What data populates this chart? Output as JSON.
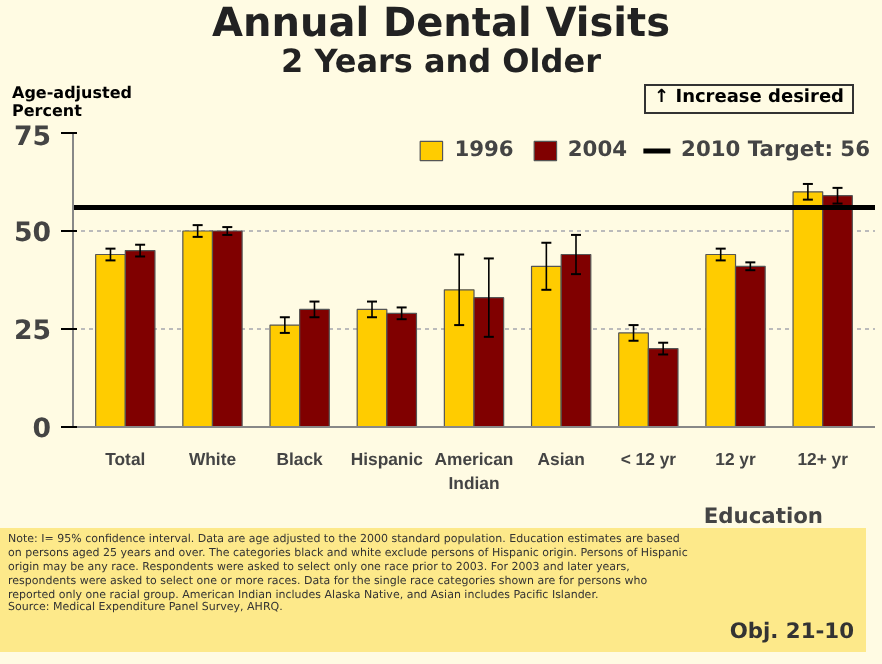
{
  "chart_data": {
    "type": "bar",
    "title": "Annual Dental Visits",
    "subtitle": "2 Years and Older",
    "ylabel": "Age-adjusted Percent",
    "categories": [
      "Total",
      "White",
      "Black",
      "Hispanic",
      "American Indian",
      "Asian",
      "< 12 yr",
      "12 yr",
      "12+ yr"
    ],
    "series": [
      {
        "name": "1996",
        "color": "#ffcc00",
        "values": [
          44,
          50,
          26,
          30,
          35,
          41,
          24,
          44,
          60
        ],
        "errors": [
          1.5,
          1.5,
          2,
          2,
          [
            26,
            44
          ],
          [
            35,
            47
          ],
          2,
          1.5,
          2
        ]
      },
      {
        "name": "2004",
        "color": "#800000",
        "values": [
          45,
          50,
          30,
          29,
          33,
          44,
          20,
          41,
          59
        ],
        "errors": [
          1.5,
          1,
          2,
          1.5,
          [
            23,
            43
          ],
          [
            39,
            49
          ],
          1.5,
          1,
          2
        ]
      }
    ],
    "ylim": [
      0,
      75
    ],
    "yticks": [
      0,
      25,
      50,
      75
    ],
    "grid": "y",
    "legend": "top right",
    "ref_lines": [
      {
        "axis": "y",
        "value": 56,
        "label": "2010 Target: 56",
        "color": "#000000"
      }
    ],
    "annotations": [
      "↑ Increase desired",
      "Education",
      "Note: I= 95% confidence interval. Data are age adjusted to the 2000 standard population. Education estimates are based on persons aged 25 years and over. The categories black and white exclude persons of Hispanic origin. Persons of Hispanic origin may be any race. Respondents were asked to select only one race prior to 2003. For 2003 and later years, respondents were asked to select one or more races. Data for the single race categories shown are for persons who reported only one racial group. American Indian includes Alaska Native, and Asian includes Pacific Islander.",
      "Source: Medical Expenditure Panel Survey, AHRQ.",
      "Obj. 21-10"
    ]
  }
}
